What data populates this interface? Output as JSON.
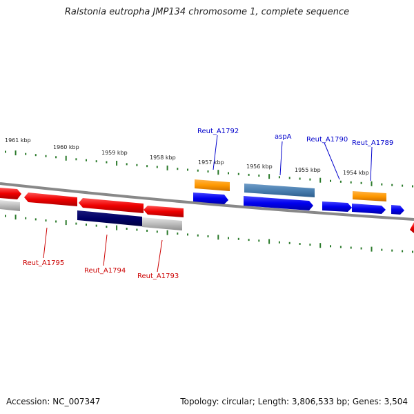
{
  "title": "Ralstonia eutropha JMP134 chromosome 1, complete sequence",
  "footer": {
    "accession": "Accession: NC_007347",
    "summary": "Topology: circular; Length: 3,806,533 bp; Genes: 3,504"
  },
  "colors": {
    "forward_label": "#0000cc",
    "reverse_label": "#cc0000",
    "tick": "#2a7a2a",
    "backbone": "#888888"
  },
  "scale": {
    "ticks": [
      {
        "label": "1961 kbp"
      },
      {
        "label": "1960 kbp"
      },
      {
        "label": "1959 kbp"
      },
      {
        "label": "1958 kbp"
      },
      {
        "label": "1957 kbp"
      },
      {
        "label": "1956 kbp"
      },
      {
        "label": "1955 kbp"
      },
      {
        "label": "1954 kbp"
      }
    ]
  },
  "genes": {
    "forward": [
      {
        "name": "Reut_A1792"
      },
      {
        "name": "aspA"
      },
      {
        "name": "Reut_A1790"
      },
      {
        "name": "Reut_A1789"
      }
    ],
    "reverse": [
      {
        "name": "Reut_A1795"
      },
      {
        "name": "Reut_A1794"
      },
      {
        "name": "Reut_A1793"
      }
    ]
  }
}
